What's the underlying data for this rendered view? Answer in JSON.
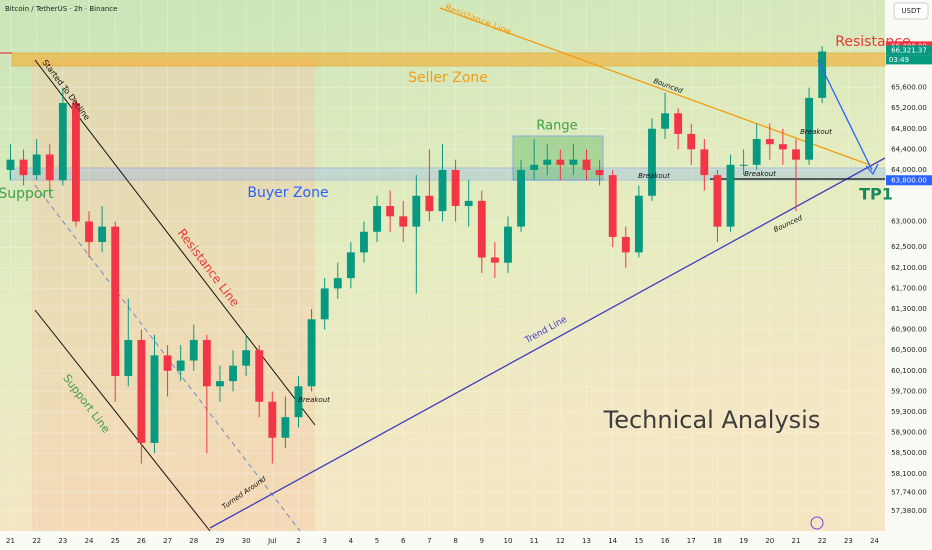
{
  "chart_data": {
    "type": "candlestick",
    "title": "Bitcoin / TetherUS · 2h · Binance",
    "currency": "USDT",
    "countdown": "03:49",
    "x": [
      0,
      0.5,
      1,
      1.5,
      2,
      2.5,
      3,
      3.5,
      4,
      4.5,
      5,
      5.5,
      6,
      6.5,
      7,
      7.5,
      8,
      8.5,
      9,
      9.5,
      10,
      10.5,
      11,
      11.5,
      12,
      12.5,
      13,
      13.5,
      14,
      14.5,
      15,
      15.5,
      16,
      16.5,
      17,
      17.5,
      18,
      18.5,
      19,
      19.5,
      20,
      20.5,
      21,
      21.5,
      22,
      22.5,
      23,
      23.5,
      24,
      24.5,
      25,
      25.5,
      26,
      26.5,
      27,
      27.5,
      28,
      28.5,
      29,
      29.5,
      30,
      30.5,
      31
    ],
    "open": [
      64000,
      64200,
      63900,
      64300,
      63800,
      65300,
      63000,
      62600,
      62900,
      60000,
      60700,
      58700,
      60400,
      60100,
      60300,
      60700,
      59800,
      59900,
      60200,
      60500,
      59500,
      58800,
      59200,
      59800,
      61100,
      61700,
      61900,
      62400,
      62800,
      63300,
      63100,
      62900,
      63500,
      63200,
      64000,
      63300,
      63400,
      62300,
      62200,
      62900,
      64000,
      64100,
      64200,
      64100,
      64200,
      64000,
      63900,
      62700,
      62400,
      63500,
      64800,
      65100,
      64700,
      64400,
      63900,
      62900,
      64100,
      64100,
      64600,
      64500,
      64400,
      64200,
      65400
    ],
    "high": [
      64500,
      64400,
      64600,
      64500,
      65600,
      65400,
      63200,
      63300,
      63000,
      61500,
      60900,
      60800,
      60600,
      60600,
      61000,
      60800,
      60200,
      60500,
      60800,
      60600,
      59700,
      59600,
      60000,
      61300,
      61900,
      62200,
      62600,
      63000,
      63500,
      63600,
      63400,
      63900,
      64400,
      64500,
      64200,
      63800,
      63600,
      62600,
      63100,
      64200,
      64600,
      64500,
      64400,
      64500,
      64400,
      64200,
      64000,
      62900,
      63700,
      65000,
      65500,
      65200,
      64900,
      64600,
      64000,
      64300,
      64400,
      64900,
      64900,
      64800,
      64600,
      65600,
      66400
    ],
    "low": [
      63800,
      63700,
      63800,
      63500,
      63700,
      62900,
      62300,
      62400,
      59500,
      59800,
      58300,
      58500,
      59600,
      59900,
      60100,
      58500,
      59500,
      59700,
      60000,
      59200,
      58300,
      58600,
      59000,
      59700,
      60900,
      61500,
      61700,
      62200,
      62600,
      62800,
      62600,
      61600,
      63000,
      63000,
      63000,
      62900,
      62000,
      61900,
      62000,
      62800,
      63800,
      63900,
      63800,
      63900,
      63800,
      63700,
      62500,
      62100,
      62300,
      63400,
      64600,
      64400,
      64100,
      63600,
      62600,
      62800,
      63900,
      64000,
      64200,
      64100,
      63200,
      64100,
      65300
    ],
    "close": [
      64200,
      63900,
      64300,
      63800,
      65300,
      63000,
      62600,
      62900,
      60000,
      60700,
      58700,
      60400,
      60100,
      60300,
      60700,
      59800,
      59900,
      60200,
      60500,
      59500,
      58800,
      59200,
      59800,
      61100,
      61700,
      61900,
      62400,
      62800,
      63300,
      63100,
      62900,
      63500,
      63200,
      64000,
      63300,
      63400,
      62300,
      62200,
      62900,
      64000,
      64100,
      64200,
      64100,
      64200,
      64000,
      63900,
      62700,
      62400,
      63500,
      64800,
      65100,
      64700,
      64400,
      63900,
      62900,
      64100,
      64100,
      64600,
      64500,
      64400,
      64200,
      65400,
      66300
    ],
    "up_color": "#089981",
    "down_color": "#f23645",
    "xlim": [
      -0.4,
      33.4
    ],
    "xticks": [
      {
        "value": 0,
        "label": "21"
      },
      {
        "value": 1,
        "label": "22"
      },
      {
        "value": 2,
        "label": "23"
      },
      {
        "value": 3,
        "label": "24"
      },
      {
        "value": 4,
        "label": "25"
      },
      {
        "value": 5,
        "label": "26"
      },
      {
        "value": 6,
        "label": "27"
      },
      {
        "value": 7,
        "label": "28"
      },
      {
        "value": 8,
        "label": "29"
      },
      {
        "value": 9,
        "label": "30"
      },
      {
        "value": 10,
        "label": "Jul"
      },
      {
        "value": 11,
        "label": "2"
      },
      {
        "value": 12,
        "label": "3"
      },
      {
        "value": 13,
        "label": "4"
      },
      {
        "value": 14,
        "label": "5"
      },
      {
        "value": 15,
        "label": "6"
      },
      {
        "value": 16,
        "label": "7"
      },
      {
        "value": 17,
        "label": "8"
      },
      {
        "value": 18,
        "label": "9"
      },
      {
        "value": 19,
        "label": "10"
      },
      {
        "value": 20,
        "label": "11"
      },
      {
        "value": 21,
        "label": "12"
      },
      {
        "value": 22,
        "label": "13"
      },
      {
        "value": 23,
        "label": "14"
      },
      {
        "value": 24,
        "label": "15"
      },
      {
        "value": 25,
        "label": "16"
      },
      {
        "value": 26,
        "label": "17"
      },
      {
        "value": 27,
        "label": "18"
      },
      {
        "value": 28,
        "label": "19"
      },
      {
        "value": 29,
        "label": "20"
      },
      {
        "value": 30,
        "label": "21"
      },
      {
        "value": 31,
        "label": "22"
      },
      {
        "value": 32,
        "label": "23"
      },
      {
        "value": 33,
        "label": "24"
      }
    ],
    "ylim": [
      56990,
      67300
    ],
    "yticks": [
      {
        "value": 57380,
        "label": "57,380.00"
      },
      {
        "value": 57740,
        "label": "57,740.00"
      },
      {
        "value": 58100,
        "label": "58,100.00"
      },
      {
        "value": 58500,
        "label": "58,500.00"
      },
      {
        "value": 58900,
        "label": "58,900.00"
      },
      {
        "value": 59300,
        "label": "59,300.00"
      },
      {
        "value": 59700,
        "label": "59,700.00"
      },
      {
        "value": 60100,
        "label": "60,100.00"
      },
      {
        "value": 60500,
        "label": "60,500.00"
      },
      {
        "value": 60900,
        "label": "60,900.00"
      },
      {
        "value": 61300,
        "label": "61,300.00"
      },
      {
        "value": 61700,
        "label": "61,700.00"
      },
      {
        "value": 62100,
        "label": "62,100.00"
      },
      {
        "value": 62500,
        "label": "62,500.00"
      },
      {
        "value": 63000,
        "label": "63,000.00"
      },
      {
        "value": 64000,
        "label": "64,000.00"
      },
      {
        "value": 64400,
        "label": "64,400.00"
      },
      {
        "value": 64800,
        "label": "64,800.00"
      },
      {
        "value": 65200,
        "label": "65,200.00"
      },
      {
        "value": 65600,
        "label": "65,600.00"
      }
    ],
    "price_tags": [
      {
        "value": 66400,
        "label": "66,400.00",
        "color": "#f23645"
      },
      {
        "value": 66321.37,
        "label": "66,321.37",
        "color": "#089981"
      },
      {
        "value": 63800,
        "label": "63,800.00",
        "color": "#2962ff"
      }
    ],
    "annotations": [
      "Seller Zone",
      "Buyer Zone",
      "Range",
      "Resistance",
      "Support",
      "TP1",
      "Resistance Line",
      "Resistance Line",
      "Support Line",
      "Started To Decline",
      "Trend Line",
      "Turned Around",
      "Breakout",
      "Breakout",
      "Breakout",
      "Breakout",
      "Bounced",
      "Bounced",
      "Technical Analysis"
    ]
  }
}
